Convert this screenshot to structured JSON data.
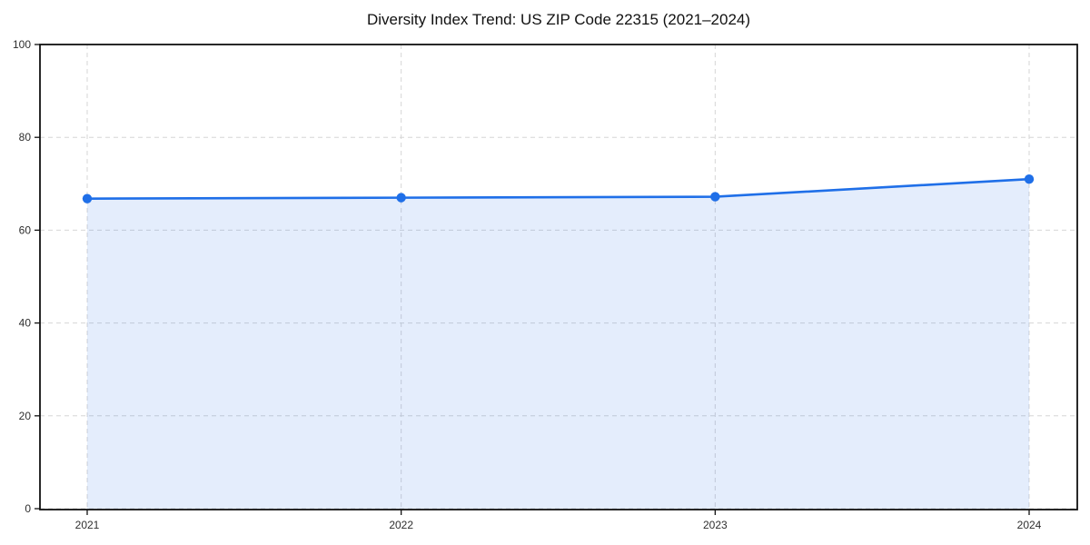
{
  "chart_data": {
    "type": "line",
    "title": "Diversity Index Trend: US ZIP Code 22315 (2021–2024)",
    "x": [
      "2021",
      "2022",
      "2023",
      "2024"
    ],
    "series": [
      {
        "name": "Diversity Index",
        "values": [
          66.8,
          67.0,
          67.2,
          71.0
        ]
      }
    ],
    "xlabel": "",
    "ylabel": "",
    "ylim": [
      0,
      100
    ],
    "yticks": [
      0,
      20,
      40,
      60,
      80,
      100
    ],
    "grid": true,
    "grid_style": "dashed",
    "legend_position": "none",
    "area_fill": true,
    "markers": true,
    "colors": {
      "line": "#1f6fe8",
      "marker": "#1f6fe8",
      "fill": "rgba(31,111,232,0.12)",
      "grid": "#d6d6d6",
      "axis": "#111111",
      "tick_label": "#2e2e2e",
      "title": "#111111",
      "background": "#ffffff"
    }
  }
}
